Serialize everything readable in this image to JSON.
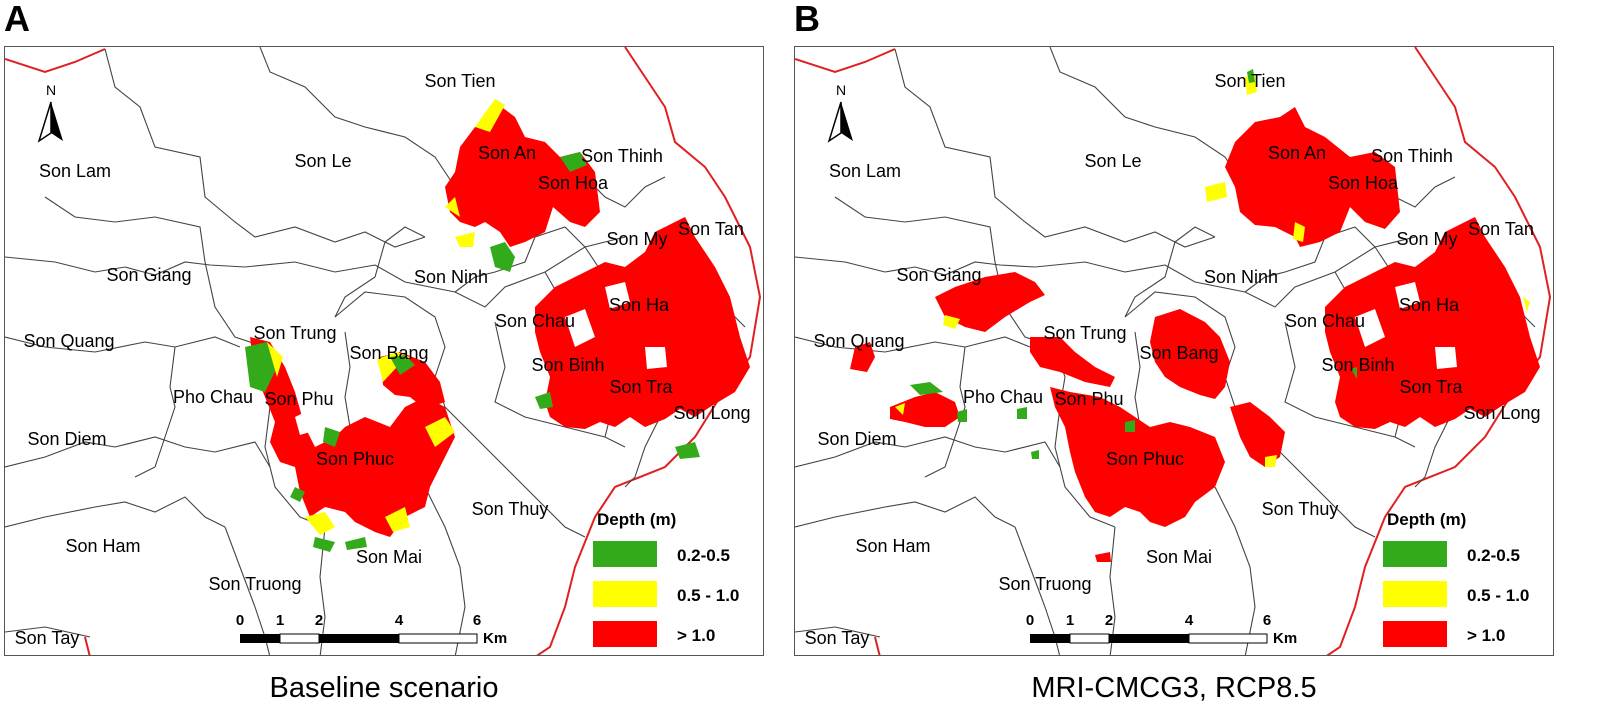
{
  "panels": [
    {
      "letter": "A",
      "caption": "Baseline scenario",
      "north_label": "N",
      "legend": {
        "title": "Depth (m)",
        "items": [
          {
            "label": "0.2-0.5",
            "color": "#33aa1a"
          },
          {
            "label": "0.5 - 1.0",
            "color": "#ffff00"
          },
          {
            "label": "> 1.0",
            "color": "#ff0000"
          }
        ]
      },
      "scale_bar": {
        "ticks": [
          "0",
          "1",
          "2",
          "4",
          "6"
        ],
        "unit": "Km"
      },
      "communes": [
        "Son Tien",
        "Son Le",
        "Son Lam",
        "Son An",
        "Son Thinh",
        "Son Hoa",
        "Son My",
        "Son Tan",
        "Son Giang",
        "Son Ninh",
        "Son Ha",
        "Son Chau",
        "Son Trung",
        "Son Quang",
        "Son Bang",
        "Son Binh",
        "Pho Chau",
        "Son Phu",
        "Son Tra",
        "Son Long",
        "Son Diem",
        "Son Phuc",
        "Son Thuy",
        "Son Ham",
        "Son Mai",
        "Son Truong",
        "Son Tay"
      ]
    },
    {
      "letter": "B",
      "caption": "MRI-CMCG3, RCP8.5",
      "north_label": "N",
      "legend": {
        "title": "Depth (m)",
        "items": [
          {
            "label": "0.2-0.5",
            "color": "#33aa1a"
          },
          {
            "label": "0.5 - 1.0",
            "color": "#ffff00"
          },
          {
            "label": "> 1.0",
            "color": "#ff0000"
          }
        ]
      },
      "scale_bar": {
        "ticks": [
          "0",
          "1",
          "2",
          "4",
          "6"
        ],
        "unit": "Km"
      },
      "communes": [
        "Son Tien",
        "Son Le",
        "Son Lam",
        "Son An",
        "Son Thinh",
        "Son Hoa",
        "Son My",
        "Son Tan",
        "Son Giang",
        "Son Ninh",
        "Son Ha",
        "Son Chau",
        "Son Trung",
        "Son Quang",
        "Son Bang",
        "Son Binh",
        "Pho Chau",
        "Son Phu",
        "Son Tra",
        "Son Long",
        "Son Diem",
        "Son Phuc",
        "Son Thuy",
        "Son Ham",
        "Son Mai",
        "Son Truong",
        "Son Tay"
      ]
    }
  ]
}
